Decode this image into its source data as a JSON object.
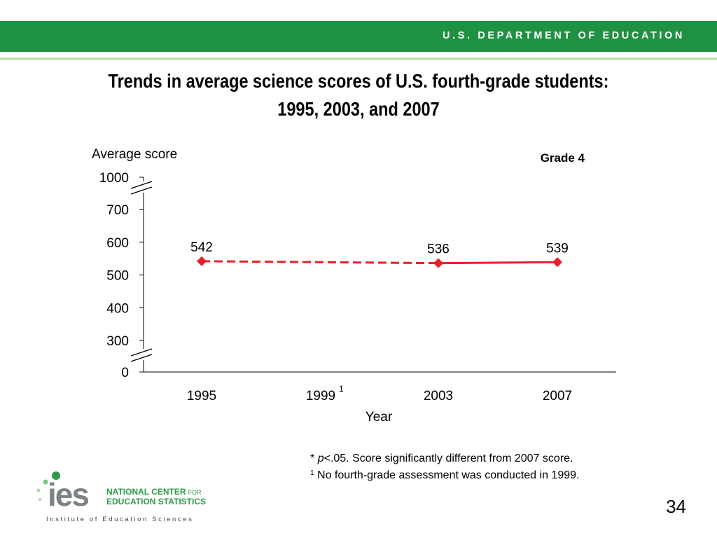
{
  "header": {
    "department": "U.S. DEPARTMENT OF EDUCATION"
  },
  "slide": {
    "title_line1": "Trends in average science scores of U.S. fourth-grade students:",
    "title_line2": "1995, 2003, and 2007",
    "page_number": "34"
  },
  "notes": {
    "note1_marker": "*",
    "note1_italic": "p",
    "note1_text": "<.05. Score significantly different from 2007 score.",
    "note2_marker": "1",
    "note2_text": "No fourth-grade assessment was conducted in 1999."
  },
  "logo": {
    "letters": "ies",
    "name_line1a": "NATIONAL CENTER",
    "name_line1b": "FOR",
    "name_line2": "EDUCATION STATISTICS",
    "tagline": "Institute of Education Sciences"
  },
  "chart_data": {
    "type": "line",
    "title": "",
    "panel_label": "Grade 4",
    "ylabel": "Average score",
    "xlabel": "Year",
    "categories": [
      "1995",
      "1999",
      "2003",
      "2007"
    ],
    "category_footnotes": [
      "",
      "1",
      "",
      ""
    ],
    "ylim": [
      300,
      700
    ],
    "yticks": [
      1000,
      700,
      600,
      500,
      400,
      300,
      0
    ],
    "axis_breaks": [
      [
        700,
        1000
      ],
      [
        0,
        300
      ]
    ],
    "series": [
      {
        "values": [
          542,
          null,
          536,
          539
        ],
        "labels": [
          "542",
          "",
          "536",
          "539"
        ],
        "dashed_segments": [
          [
            0,
            2
          ]
        ],
        "color": "#e8202a"
      }
    ],
    "grid": false,
    "legend": "none"
  }
}
